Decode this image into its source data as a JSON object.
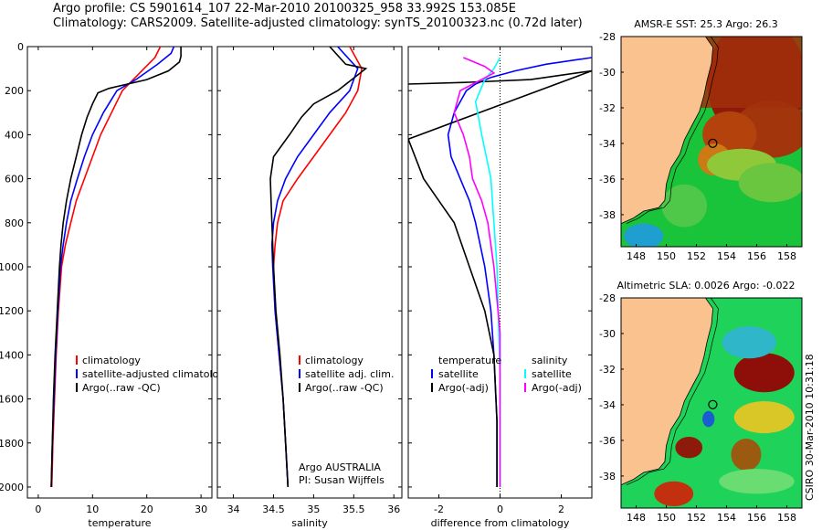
{
  "header": {
    "line1": "Argo profile: CS 5901614_107 22-Mar-2010 20100325_958 33.992S 153.085E",
    "line2": "Climatology: CARS2009. Satellite-adjusted climatology: synTS_20100323.nc (0.72d later)"
  },
  "colors": {
    "climatology": "#ff0000",
    "satellite": "#0000ff",
    "argo": "#000000",
    "salinity_satellite": "#00ffff",
    "salinity_argo": "#ff00ff",
    "land": "#f9c28f"
  },
  "chart_data": [
    {
      "type": "line",
      "name": "temperature-panel",
      "xlabel": "temperature",
      "ylabel": "",
      "xlim": [
        -2,
        32
      ],
      "ylim": [
        2050,
        0
      ],
      "xticks": [
        "0",
        "10",
        "20",
        "30"
      ],
      "yticks": [
        "0",
        "200",
        "400",
        "600",
        "800",
        "1000",
        "1200",
        "1400",
        "1600",
        "1800",
        "2000"
      ],
      "legend": [
        "climatology",
        "satellite-adjusted climatology",
        "Argo(..raw -QC)"
      ],
      "legend_position": "bottom",
      "series": [
        {
          "name": "climatology",
          "color": "climatology",
          "points": [
            [
              22.5,
              0
            ],
            [
              21.5,
              50
            ],
            [
              19.5,
              100
            ],
            [
              17.5,
              150
            ],
            [
              15.5,
              200
            ],
            [
              13.5,
              300
            ],
            [
              11.5,
              400
            ],
            [
              10,
              500
            ],
            [
              8.5,
              600
            ],
            [
              7,
              700
            ],
            [
              6,
              800
            ],
            [
              5,
              900
            ],
            [
              4.3,
              1000
            ],
            [
              3.7,
              1200
            ],
            [
              3.3,
              1400
            ],
            [
              3,
              1600
            ],
            [
              2.7,
              1800
            ],
            [
              2.5,
              2000
            ]
          ]
        },
        {
          "name": "satellite-adjusted climatology",
          "color": "satellite",
          "points": [
            [
              25,
              0
            ],
            [
              24.5,
              30
            ],
            [
              22,
              80
            ],
            [
              18,
              150
            ],
            [
              14.5,
              200
            ],
            [
              12,
              300
            ],
            [
              10,
              400
            ],
            [
              8.5,
              500
            ],
            [
              7.2,
              600
            ],
            [
              6,
              700
            ],
            [
              5.2,
              800
            ],
            [
              4.6,
              900
            ],
            [
              4.1,
              1000
            ],
            [
              3.6,
              1200
            ],
            [
              3.2,
              1400
            ],
            [
              2.9,
              1600
            ],
            [
              2.6,
              1800
            ],
            [
              2.4,
              2000
            ]
          ]
        },
        {
          "name": "Argo(..raw -QC)",
          "color": "argo",
          "points": [
            [
              26.3,
              0
            ],
            [
              26.3,
              45
            ],
            [
              26,
              70
            ],
            [
              24,
              110
            ],
            [
              20,
              150
            ],
            [
              13,
              190
            ],
            [
              11,
              210
            ],
            [
              10,
              260
            ],
            [
              9,
              320
            ],
            [
              8,
              400
            ],
            [
              7,
              500
            ],
            [
              6,
              600
            ],
            [
              5.2,
              700
            ],
            [
              4.6,
              800
            ],
            [
              4.2,
              900
            ],
            [
              3.9,
              1000
            ],
            [
              3.5,
              1200
            ],
            [
              3.1,
              1400
            ],
            [
              2.8,
              1600
            ],
            [
              2.6,
              1800
            ],
            [
              2.4,
              2000
            ]
          ]
        }
      ]
    },
    {
      "type": "line",
      "name": "salinity-panel",
      "xlabel": "salinity",
      "ylabel": "",
      "xlim": [
        33.8,
        36.1
      ],
      "ylim": [
        2050,
        0
      ],
      "xticks": [
        "34",
        "34.5",
        "35",
        "35.5",
        "36"
      ],
      "legend": [
        "climatology",
        "satellite adj. clim.",
        "Argo(..raw -QC)"
      ],
      "legend_position": "bottom",
      "annotation": [
        "Argo AUSTRALIA",
        "PI: Susan Wijffels"
      ],
      "series": [
        {
          "name": "climatology",
          "color": "climatology",
          "points": [
            [
              35.45,
              0
            ],
            [
              35.6,
              100
            ],
            [
              35.55,
              200
            ],
            [
              35.4,
              300
            ],
            [
              35.2,
              400
            ],
            [
              35.0,
              500
            ],
            [
              34.8,
              600
            ],
            [
              34.62,
              700
            ],
            [
              34.55,
              800
            ],
            [
              34.52,
              900
            ],
            [
              34.5,
              1000
            ],
            [
              34.52,
              1200
            ],
            [
              34.57,
              1400
            ],
            [
              34.62,
              1600
            ],
            [
              34.65,
              1800
            ],
            [
              34.68,
              2000
            ]
          ]
        },
        {
          "name": "satellite adj. clim.",
          "color": "satellite",
          "points": [
            [
              35.3,
              0
            ],
            [
              35.55,
              100
            ],
            [
              35.45,
              200
            ],
            [
              35.2,
              300
            ],
            [
              35.0,
              400
            ],
            [
              34.8,
              500
            ],
            [
              34.65,
              600
            ],
            [
              34.55,
              700
            ],
            [
              34.5,
              800
            ],
            [
              34.48,
              900
            ],
            [
              34.49,
              1000
            ],
            [
              34.52,
              1200
            ],
            [
              34.57,
              1400
            ],
            [
              34.62,
              1600
            ],
            [
              34.65,
              1800
            ],
            [
              34.68,
              2000
            ]
          ]
        },
        {
          "name": "Argo(..raw -QC)",
          "color": "argo",
          "points": [
            [
              35.2,
              0
            ],
            [
              35.4,
              80
            ],
            [
              35.65,
              100
            ],
            [
              35.3,
              200
            ],
            [
              35.0,
              260
            ],
            [
              34.85,
              320
            ],
            [
              34.7,
              400
            ],
            [
              34.5,
              500
            ],
            [
              34.46,
              600
            ],
            [
              34.47,
              700
            ],
            [
              34.48,
              800
            ],
            [
              34.49,
              900
            ],
            [
              34.5,
              1000
            ],
            [
              34.53,
              1200
            ],
            [
              34.58,
              1400
            ],
            [
              34.62,
              1600
            ],
            [
              34.65,
              1800
            ],
            [
              34.68,
              2000
            ]
          ]
        }
      ]
    },
    {
      "type": "line",
      "name": "difference-panel",
      "xlabel": "difference from climatology",
      "ylabel": "",
      "xlim": [
        -3,
        3
      ],
      "ylim": [
        2050,
        0
      ],
      "xticks": [
        "-2",
        "0",
        "2"
      ],
      "legend_left": [
        "temperature",
        "satellite",
        "Argo(-adj)"
      ],
      "legend_right": [
        "salinity",
        "satellite",
        "Argo(-adj)"
      ],
      "legend_position": "bottom",
      "series": [
        {
          "name": "temperature satellite",
          "color": "satellite",
          "points": [
            [
              3,
              50
            ],
            [
              1.5,
              80
            ],
            [
              0.5,
              110
            ],
            [
              -0.3,
              140
            ],
            [
              -0.8,
              170
            ],
            [
              -1.1,
              200
            ],
            [
              -1.5,
              300
            ],
            [
              -1.7,
              400
            ],
            [
              -1.6,
              500
            ],
            [
              -1.3,
              600
            ],
            [
              -1.0,
              700
            ],
            [
              -0.8,
              800
            ],
            [
              -0.5,
              1000
            ],
            [
              -0.3,
              1200
            ],
            [
              -0.2,
              1400
            ],
            [
              -0.1,
              1700
            ],
            [
              -0.1,
              2000
            ]
          ]
        },
        {
          "name": "temperature Argo(-adj)",
          "color": "argo",
          "points": [
            [
              -3,
              170
            ],
            [
              -1,
              162
            ],
            [
              1,
              150
            ],
            [
              3,
              110
            ],
            [
              3,
              110
            ],
            [
              -3,
              420
            ],
            [
              -2.5,
              600
            ],
            [
              -2,
              700
            ],
            [
              -1.5,
              800
            ],
            [
              -1,
              1000
            ],
            [
              -0.5,
              1200
            ],
            [
              -0.2,
              1400
            ],
            [
              -0.1,
              1700
            ],
            [
              -0.1,
              2000
            ]
          ]
        },
        {
          "name": "salinity satellite",
          "color": "salinity_satellite",
          "points": [
            [
              0,
              50
            ],
            [
              -0.2,
              100
            ],
            [
              -0.5,
              150
            ],
            [
              -0.8,
              250
            ],
            [
              -0.6,
              400
            ],
            [
              -0.3,
              600
            ],
            [
              -0.2,
              800
            ],
            [
              -0.1,
              1000
            ],
            [
              0,
              1500
            ],
            [
              0,
              2000
            ]
          ]
        },
        {
          "name": "salinity Argo(-adj)",
          "color": "salinity_argo",
          "points": [
            [
              -1.2,
              50
            ],
            [
              -0.5,
              90
            ],
            [
              -0.2,
              120
            ],
            [
              -1.3,
              200
            ],
            [
              -1.5,
              300
            ],
            [
              -1.2,
              400
            ],
            [
              -1.0,
              500
            ],
            [
              -0.9,
              600
            ],
            [
              -0.6,
              700
            ],
            [
              -0.4,
              800
            ],
            [
              -0.2,
              1000
            ],
            [
              0,
              1300
            ],
            [
              0,
              1600
            ],
            [
              0,
              2000
            ]
          ]
        }
      ]
    },
    {
      "type": "heatmap",
      "name": "sst-map",
      "title": "AMSR-E SST: 25.3 Argo: 26.3",
      "xlim": [
        147,
        159
      ],
      "ylim": [
        -39.8,
        -28
      ],
      "xticks": [
        "148",
        "150",
        "152",
        "154",
        "156",
        "158"
      ],
      "yticks": [
        "-28",
        "-30",
        "-32",
        "-34",
        "-36",
        "-38"
      ],
      "marker": [
        153.085,
        -33.992
      ]
    },
    {
      "type": "heatmap",
      "name": "sla-map",
      "title": "Altimetric SLA: 0.0026 Argo: -0.022",
      "xlim": [
        147,
        159
      ],
      "ylim": [
        -39.8,
        -28
      ],
      "xticks": [
        "148",
        "150",
        "152",
        "154",
        "156",
        "158"
      ],
      "yticks": [
        "-28",
        "-30",
        "-32",
        "-34",
        "-36",
        "-38"
      ],
      "marker": [
        153.085,
        -33.992
      ]
    }
  ],
  "stamp": "CSIRO 30-Mar-2010 10:31:18"
}
